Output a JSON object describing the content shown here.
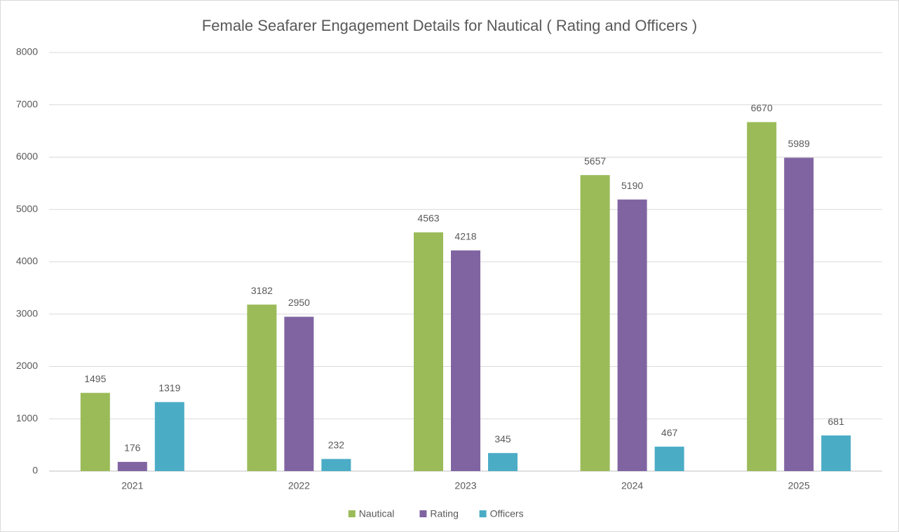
{
  "chart_data": {
    "type": "bar",
    "title": "Female Seafarer Engagement Details for Nautical ( Rating and Officers )",
    "categories": [
      "2021",
      "2022",
      "2023",
      "2024",
      "2025"
    ],
    "series": [
      {
        "name": "Nautical",
        "color": "#9bbb59",
        "values": [
          1495,
          3182,
          4563,
          5657,
          6670
        ]
      },
      {
        "name": "Rating",
        "color": "#8064a2",
        "values": [
          176,
          2950,
          4218,
          5190,
          5989
        ]
      },
      {
        "name": "Officers",
        "color": "#4bacc6",
        "values": [
          1319,
          232,
          345,
          467,
          681
        ]
      }
    ],
    "ylim": [
      0,
      8000
    ],
    "yticks": [
      0,
      1000,
      2000,
      3000,
      4000,
      5000,
      6000,
      7000,
      8000
    ],
    "grid": true,
    "legend": "bottom",
    "data_labels": true
  }
}
